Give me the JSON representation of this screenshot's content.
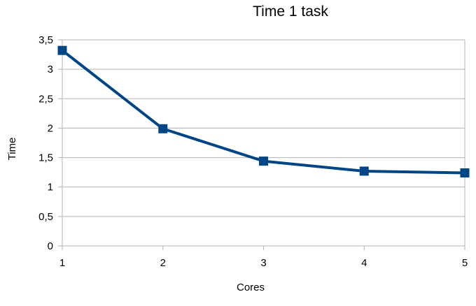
{
  "chart_data": {
    "type": "line",
    "title": "Time 1 task",
    "xlabel": "Cores",
    "ylabel": "Time",
    "x": [
      1,
      2,
      3,
      4,
      5
    ],
    "x_tick_labels": [
      "1",
      "2",
      "3",
      "4",
      "5"
    ],
    "series": [
      {
        "values": [
          3.32,
          1.99,
          1.44,
          1.27,
          1.24
        ],
        "color": "#004586",
        "marker": "square"
      }
    ],
    "ylim": [
      0,
      3.5
    ],
    "y_ticks": [
      0,
      0.5,
      1,
      1.5,
      2,
      2.5,
      3,
      3.5
    ],
    "y_tick_labels": [
      "0",
      "0,5",
      "1",
      "1,5",
      "2",
      "2,5",
      "3",
      "3,5"
    ],
    "xlim": [
      1,
      5
    ],
    "grid": "horizontal",
    "legend": "none",
    "colors": {
      "grid": "#b3b3b3",
      "axis": "#b3b3b3",
      "series": "#004586"
    }
  }
}
